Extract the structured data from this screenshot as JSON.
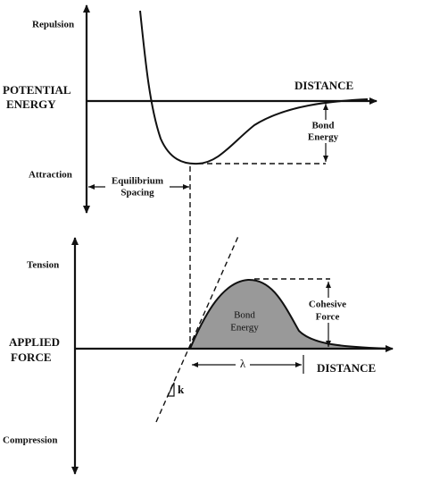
{
  "top_panel": {
    "y_axis_top": "Repulsion",
    "y_axis_title": [
      "POTENTIAL",
      "ENERGY"
    ],
    "y_axis_bottom": "Attraction",
    "x_axis_title": "DISTANCE",
    "depth_label": [
      "Bond",
      "Energy"
    ],
    "spacing_label": [
      "Equilibrium",
      "Spacing"
    ]
  },
  "bottom_panel": {
    "y_axis_top": "Tension",
    "y_axis_title": [
      "APPLIED",
      "FORCE"
    ],
    "y_axis_bottom": "Compression",
    "x_axis_title": "DISTANCE",
    "area_label": [
      "Bond",
      "Energy"
    ],
    "peak_label": [
      "Cohesive",
      "Force"
    ],
    "width_label": "λ",
    "slope_label": "k"
  }
}
